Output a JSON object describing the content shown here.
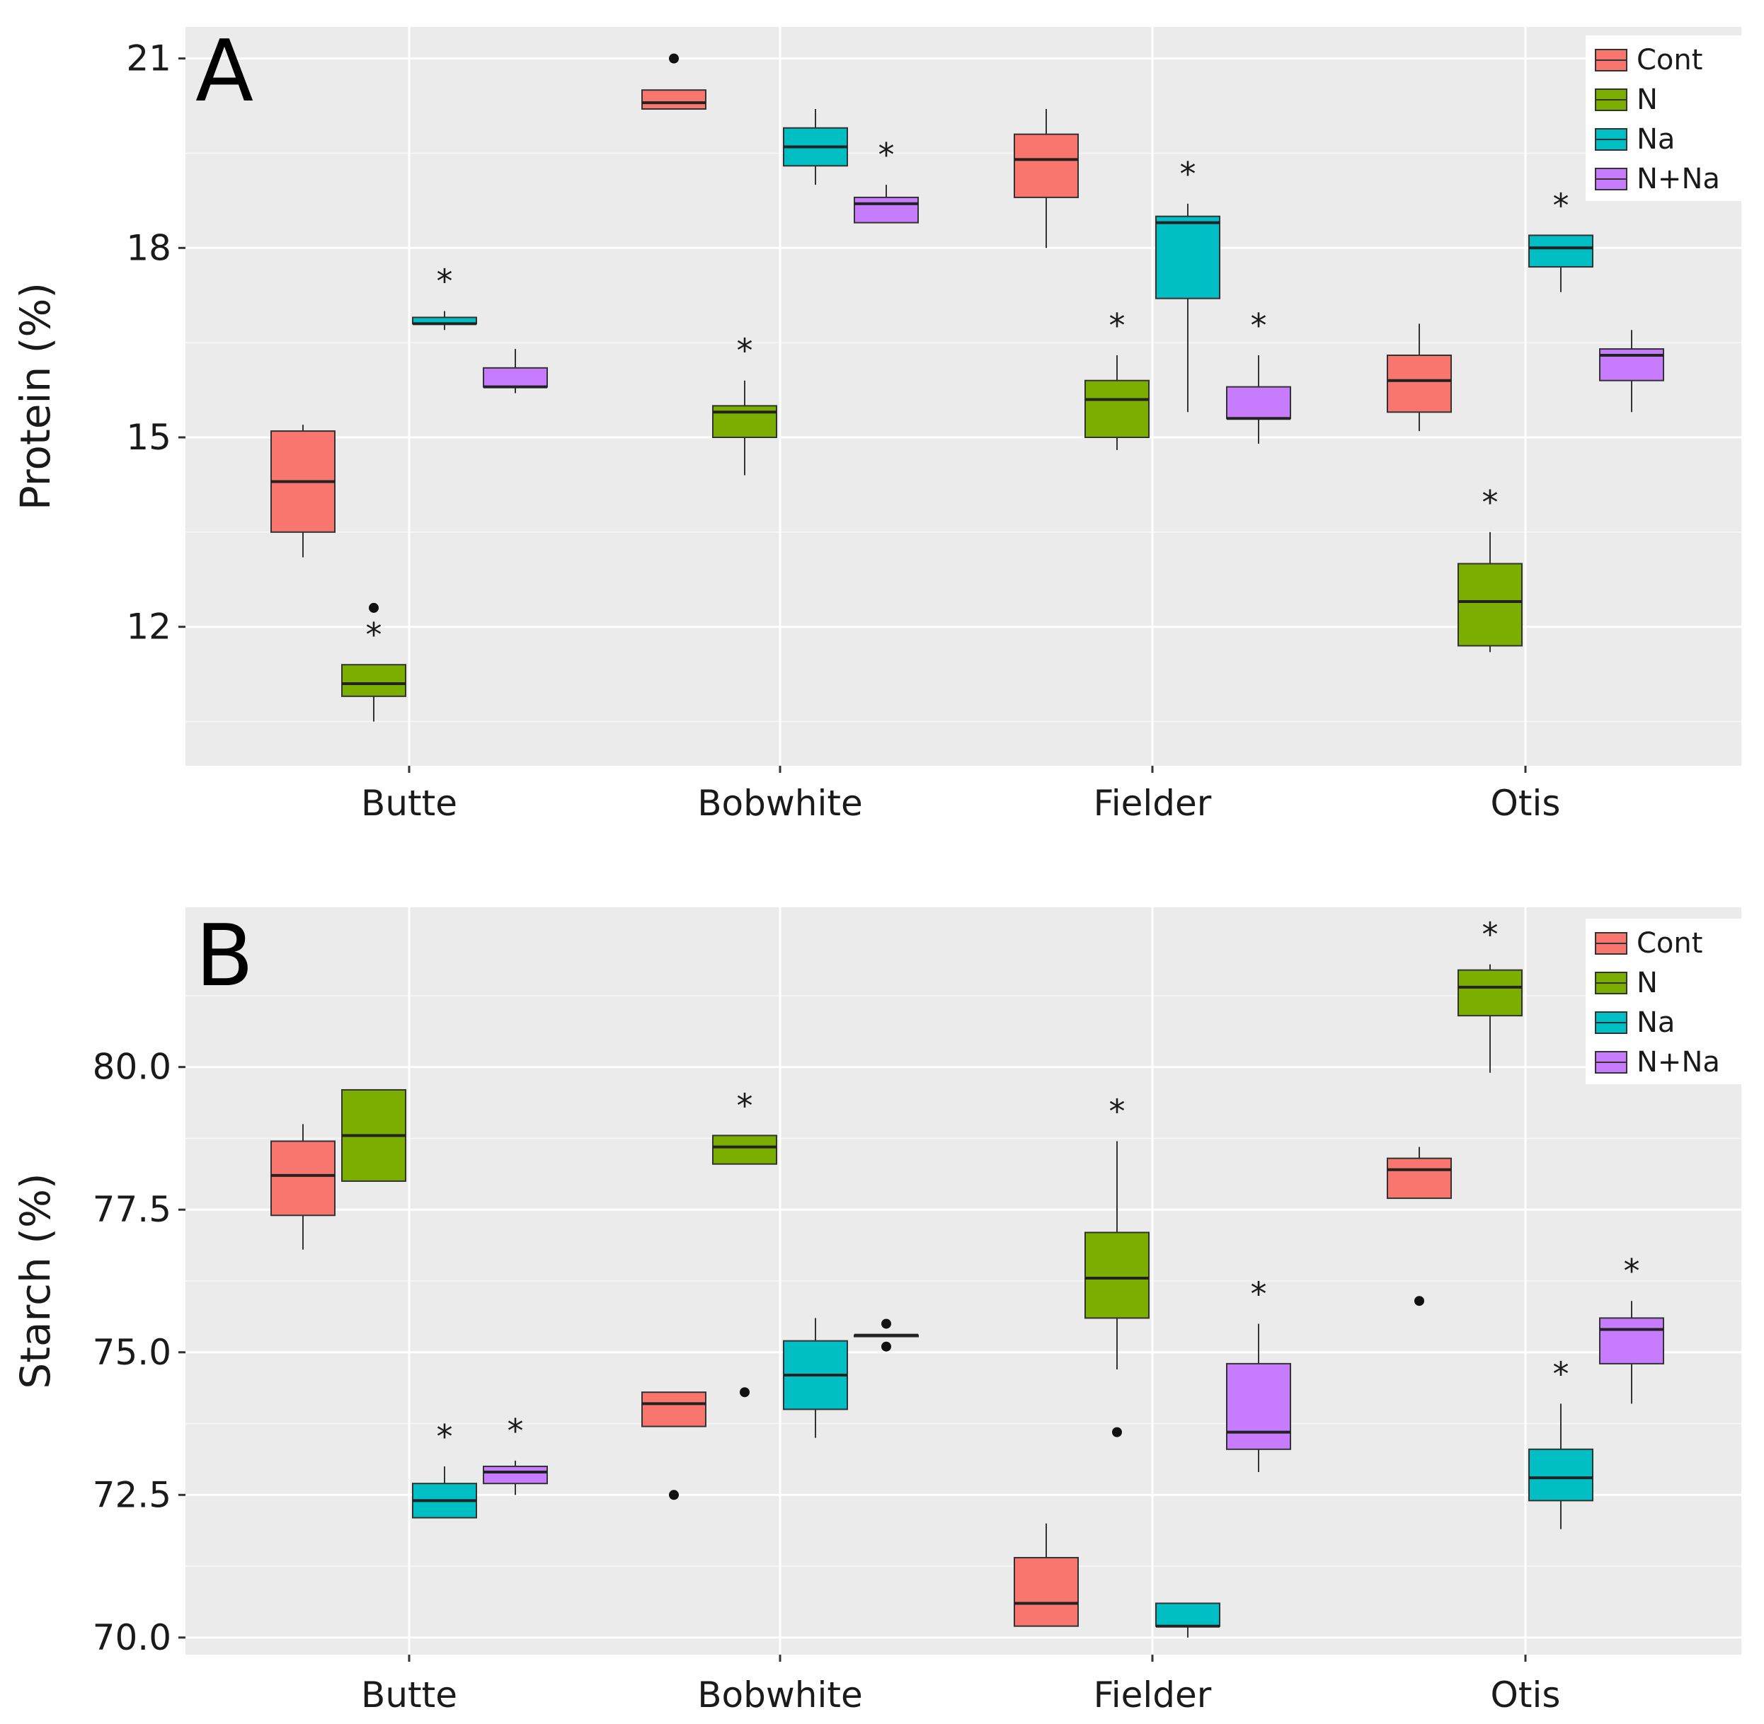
{
  "colors": {
    "Cont": "#F8766D",
    "N": "#7CAE00",
    "Na": "#00BFC4",
    "N+Na": "#C77CFF",
    "panel_bg": "#EBEBEB"
  },
  "chart_data": [
    {
      "type": "box",
      "panel_label": "A",
      "ylabel": "Protein (%)",
      "xlabel": "",
      "ylim": [
        9.8,
        21.5
      ],
      "yticks": [
        12,
        15,
        18,
        21
      ],
      "ytick_labels": [
        "12",
        "15",
        "18",
        "21"
      ],
      "categories": [
        "Butte",
        "Bobwhite",
        "Fielder",
        "Otis"
      ],
      "legend": {
        "position": "top-right",
        "entries": [
          "Cont",
          "N",
          "Na",
          "N+Na"
        ]
      },
      "series": [
        {
          "name": "Cont",
          "boxes": [
            {
              "category": "Butte",
              "min": 13.1,
              "q1": 13.5,
              "median": 14.3,
              "q3": 15.1,
              "max": 15.2,
              "outliers": [],
              "significant": false
            },
            {
              "category": "Bobwhite",
              "min": 20.2,
              "q1": 20.2,
              "median": 20.3,
              "q3": 20.5,
              "max": 20.5,
              "outliers": [
                21.0
              ],
              "significant": false
            },
            {
              "category": "Fielder",
              "min": 18.0,
              "q1": 18.8,
              "median": 19.4,
              "q3": 19.8,
              "max": 20.2,
              "outliers": [],
              "significant": false
            },
            {
              "category": "Otis",
              "min": 15.1,
              "q1": 15.4,
              "median": 15.9,
              "q3": 16.3,
              "max": 16.8,
              "outliers": [],
              "significant": false
            }
          ]
        },
        {
          "name": "N",
          "boxes": [
            {
              "category": "Butte",
              "min": 10.5,
              "q1": 10.9,
              "median": 11.1,
              "q3": 11.4,
              "max": 11.4,
              "outliers": [
                12.3
              ],
              "significant": true
            },
            {
              "category": "Bobwhite",
              "min": 14.4,
              "q1": 15.0,
              "median": 15.4,
              "q3": 15.5,
              "max": 15.9,
              "outliers": [],
              "significant": true
            },
            {
              "category": "Fielder",
              "min": 14.8,
              "q1": 15.0,
              "median": 15.6,
              "q3": 15.9,
              "max": 16.3,
              "outliers": [],
              "significant": true
            },
            {
              "category": "Otis",
              "min": 11.6,
              "q1": 11.7,
              "median": 12.4,
              "q3": 13.0,
              "max": 13.5,
              "outliers": [],
              "significant": true
            }
          ]
        },
        {
          "name": "Na",
          "boxes": [
            {
              "category": "Butte",
              "min": 16.7,
              "q1": 16.8,
              "median": 16.8,
              "q3": 16.9,
              "max": 17.0,
              "outliers": [],
              "significant": true
            },
            {
              "category": "Bobwhite",
              "min": 19.0,
              "q1": 19.3,
              "median": 19.6,
              "q3": 19.9,
              "max": 20.2,
              "outliers": [],
              "significant": false
            },
            {
              "category": "Fielder",
              "min": 15.4,
              "q1": 17.2,
              "median": 18.4,
              "q3": 18.5,
              "max": 18.7,
              "outliers": [],
              "significant": true
            },
            {
              "category": "Otis",
              "min": 17.3,
              "q1": 17.7,
              "median": 18.0,
              "q3": 18.2,
              "max": 18.2,
              "outliers": [],
              "significant": true
            }
          ]
        },
        {
          "name": "N+Na",
          "boxes": [
            {
              "category": "Butte",
              "min": 15.7,
              "q1": 15.8,
              "median": 15.8,
              "q3": 16.1,
              "max": 16.4,
              "outliers": [],
              "significant": false
            },
            {
              "category": "Bobwhite",
              "min": 18.4,
              "q1": 18.4,
              "median": 18.7,
              "q3": 18.8,
              "max": 19.0,
              "outliers": [],
              "significant": true
            },
            {
              "category": "Fielder",
              "min": 14.9,
              "q1": 15.3,
              "median": 15.3,
              "q3": 15.8,
              "max": 16.3,
              "outliers": [],
              "significant": true
            },
            {
              "category": "Otis",
              "min": 15.4,
              "q1": 15.9,
              "median": 16.3,
              "q3": 16.4,
              "max": 16.7,
              "outliers": [],
              "significant": false
            }
          ]
        }
      ]
    },
    {
      "type": "box",
      "panel_label": "B",
      "ylabel": "Starch (%)",
      "xlabel": "",
      "ylim": [
        69.7,
        82.8
      ],
      "yticks": [
        70.0,
        72.5,
        75.0,
        77.5,
        80.0
      ],
      "ytick_labels": [
        "70.0",
        "72.5",
        "75.0",
        "77.5",
        "80.0"
      ],
      "categories": [
        "Butte",
        "Bobwhite",
        "Fielder",
        "Otis"
      ],
      "legend": {
        "position": "top-right",
        "entries": [
          "Cont",
          "N",
          "Na",
          "N+Na"
        ]
      },
      "series": [
        {
          "name": "Cont",
          "boxes": [
            {
              "category": "Butte",
              "min": 76.8,
              "q1": 77.4,
              "median": 78.1,
              "q3": 78.7,
              "max": 79.0,
              "outliers": [],
              "significant": false
            },
            {
              "category": "Bobwhite",
              "min": 73.7,
              "q1": 73.7,
              "median": 74.1,
              "q3": 74.3,
              "max": 74.3,
              "outliers": [
                72.5
              ],
              "significant": false
            },
            {
              "category": "Fielder",
              "min": 70.2,
              "q1": 70.2,
              "median": 70.6,
              "q3": 71.4,
              "max": 72.0,
              "outliers": [],
              "significant": false
            },
            {
              "category": "Otis",
              "min": 77.7,
              "q1": 77.7,
              "median": 78.2,
              "q3": 78.4,
              "max": 78.6,
              "outliers": [
                75.9
              ],
              "significant": false
            }
          ]
        },
        {
          "name": "N",
          "boxes": [
            {
              "category": "Butte",
              "min": 78.0,
              "q1": 78.0,
              "median": 78.8,
              "q3": 79.6,
              "max": 79.6,
              "outliers": [],
              "significant": false
            },
            {
              "category": "Bobwhite",
              "min": 78.3,
              "q1": 78.3,
              "median": 78.6,
              "q3": 78.8,
              "max": 78.8,
              "outliers": [
                74.3
              ],
              "significant": true
            },
            {
              "category": "Fielder",
              "min": 74.7,
              "q1": 75.6,
              "median": 76.3,
              "q3": 77.1,
              "max": 78.7,
              "outliers": [
                73.6
              ],
              "significant": true
            },
            {
              "category": "Otis",
              "min": 79.9,
              "q1": 80.9,
              "median": 81.4,
              "q3": 81.7,
              "max": 81.8,
              "outliers": [],
              "significant": true
            }
          ]
        },
        {
          "name": "Na",
          "boxes": [
            {
              "category": "Butte",
              "min": 72.1,
              "q1": 72.1,
              "median": 72.4,
              "q3": 72.7,
              "max": 73.0,
              "outliers": [],
              "significant": true
            },
            {
              "category": "Bobwhite",
              "min": 73.5,
              "q1": 74.0,
              "median": 74.6,
              "q3": 75.2,
              "max": 75.6,
              "outliers": [],
              "significant": false
            },
            {
              "category": "Fielder",
              "min": 70.0,
              "q1": 70.2,
              "median": 70.2,
              "q3": 70.6,
              "max": 70.6,
              "outliers": [],
              "significant": false
            },
            {
              "category": "Otis",
              "min": 71.9,
              "q1": 72.4,
              "median": 72.8,
              "q3": 73.3,
              "max": 74.1,
              "outliers": [],
              "significant": true
            }
          ]
        },
        {
          "name": "N+Na",
          "boxes": [
            {
              "category": "Butte",
              "min": 72.5,
              "q1": 72.7,
              "median": 72.9,
              "q3": 73.0,
              "max": 73.1,
              "outliers": [],
              "significant": true
            },
            {
              "category": "Bobwhite",
              "min": 75.3,
              "q1": 75.3,
              "median": 75.3,
              "q3": 75.3,
              "max": 75.3,
              "outliers": [
                75.5,
                75.1
              ],
              "significant": false
            },
            {
              "category": "Fielder",
              "min": 72.9,
              "q1": 73.3,
              "median": 73.6,
              "q3": 74.8,
              "max": 75.5,
              "outliers": [],
              "significant": true
            },
            {
              "category": "Otis",
              "min": 74.1,
              "q1": 74.8,
              "median": 75.4,
              "q3": 75.6,
              "max": 75.9,
              "outliers": [],
              "significant": true
            }
          ]
        }
      ]
    }
  ]
}
